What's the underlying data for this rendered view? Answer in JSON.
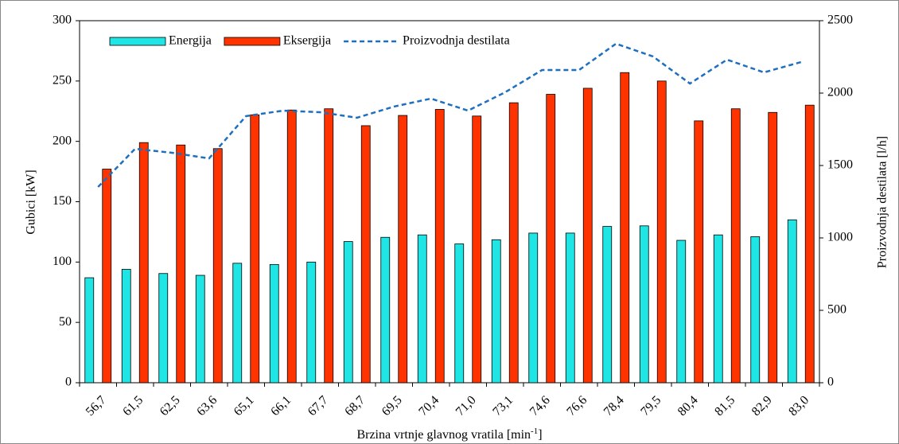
{
  "chart_data": {
    "type": "bar_line",
    "x_label": "Brzina vrtnje glavnog vratila [min",
    "x_label_sup": "-1",
    "x_label_end": "]",
    "y_label": "Gubici [kW]",
    "y2_label": "Proizvodnja destilata [l/h]",
    "categories": [
      "56,7",
      "61,5",
      "62,5",
      "63,6",
      "65,1",
      "66,1",
      "67,7",
      "68,7",
      "69,5",
      "70,4",
      "71,0",
      "73,1",
      "74,6",
      "76,6",
      "78,4",
      "79,5",
      "80,4",
      "81,5",
      "82,9",
      "83,0"
    ],
    "series": [
      {
        "name": "Energija",
        "color": "#1fe5e5",
        "kind": "bar",
        "values": [
          87,
          94,
          90.5,
          89,
          99,
          98,
          100,
          117,
          120.5,
          122.5,
          115,
          118.5,
          124,
          124,
          129.5,
          130,
          118,
          122.5,
          121,
          135
        ]
      },
      {
        "name": "Eksergija",
        "color": "#ff3300",
        "kind": "bar",
        "values": [
          177,
          199,
          197,
          194,
          222,
          226,
          227,
          213,
          221.5,
          226.5,
          221,
          232,
          239,
          244,
          257,
          250,
          217,
          227,
          224,
          230
        ]
      },
      {
        "name": "Proizvodnja destilata",
        "color": "#1f6fbf",
        "kind": "line",
        "axis": "y2",
        "values": [
          1352,
          1615,
          1588,
          1549,
          1841,
          1879,
          1868,
          1830,
          1907,
          1962,
          1879,
          2005,
          2159,
          2159,
          2341,
          2253,
          2066,
          2231,
          2143,
          2214
        ]
      }
    ],
    "ylim": [
      0,
      300
    ],
    "yticks": [
      0,
      50,
      100,
      150,
      200,
      250,
      300
    ],
    "y2lim": [
      0,
      2500
    ],
    "y2ticks": [
      0,
      500,
      1000,
      1500,
      2000,
      2500
    ],
    "grid": false,
    "legend": "top-left"
  }
}
